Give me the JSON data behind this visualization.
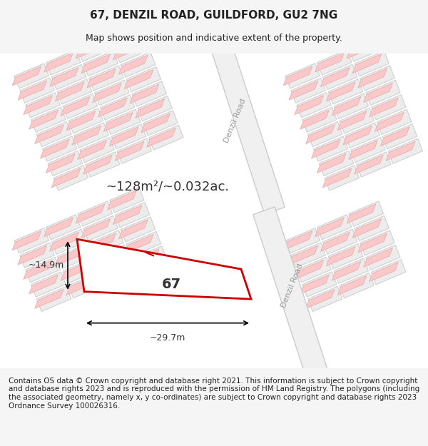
{
  "title_line1": "67, DENZIL ROAD, GUILDFORD, GU2 7NG",
  "title_line2": "Map shows position and indicative extent of the property.",
  "area_label": "~128m²/~0.032ac.",
  "property_number": "67",
  "width_label": "~29.7m",
  "height_label": "~14.9m",
  "footer_text": "Contains OS data © Crown copyright and database right 2021. This information is subject to Crown copyright and database rights 2023 and is reproduced with the permission of HM Land Registry. The polygons (including the associated geometry, namely x, y co-ordinates) are subject to Crown copyright and database rights 2023 Ordnance Survey 100026316.",
  "bg_color": "#f5f5f5",
  "map_bg": "#ffffff",
  "building_fill": "#e8e8e8",
  "building_outline": "#cccccc",
  "road_fill": "#ffffff",
  "road_stripe": "#f0c0c0",
  "property_outline": "#cc0000",
  "property_fill": "#ffffff",
  "title_fontsize": 11,
  "subtitle_fontsize": 9,
  "footer_fontsize": 7.5,
  "road_label_color": "#888888",
  "denzil_road_label": "Denzil Road"
}
